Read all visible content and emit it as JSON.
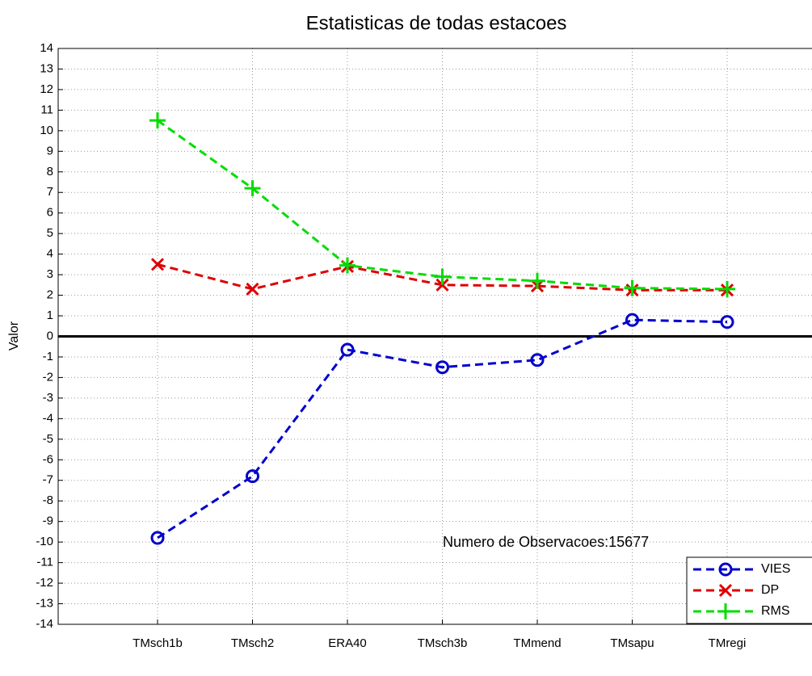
{
  "chart_data": {
    "type": "line",
    "title": "Estatisticas de todas estacoes",
    "ylabel": "Valor",
    "annotation": "Numero de Observacoes:15677",
    "categories": [
      "TMsch1b",
      "TMsch2",
      "ERA40",
      "TMsch3b",
      "TMmend",
      "TMsapu",
      "TMregi"
    ],
    "series": [
      {
        "name": "VIES",
        "color": "#0000cc",
        "marker": "o",
        "values": [
          -9.8,
          -6.8,
          -0.65,
          -1.5,
          -1.15,
          0.8,
          0.7
        ]
      },
      {
        "name": "DP",
        "color": "#dd0000",
        "marker": "x",
        "values": [
          3.5,
          2.3,
          3.4,
          2.5,
          2.45,
          2.25,
          2.25
        ]
      },
      {
        "name": "RMS",
        "color": "#00dd00",
        "marker": "+",
        "values": [
          10.5,
          7.2,
          3.45,
          2.9,
          2.7,
          2.35,
          2.3
        ]
      }
    ],
    "ylim": [
      -14,
      14
    ],
    "yticks": [
      -14,
      -13,
      -12,
      -11,
      -10,
      -9,
      -8,
      -7,
      -6,
      -5,
      -4,
      -3,
      -2,
      -1,
      0,
      1,
      2,
      3,
      4,
      5,
      6,
      7,
      8,
      9,
      10,
      11,
      12,
      13,
      14
    ],
    "grid": true,
    "legend": "lower right"
  }
}
